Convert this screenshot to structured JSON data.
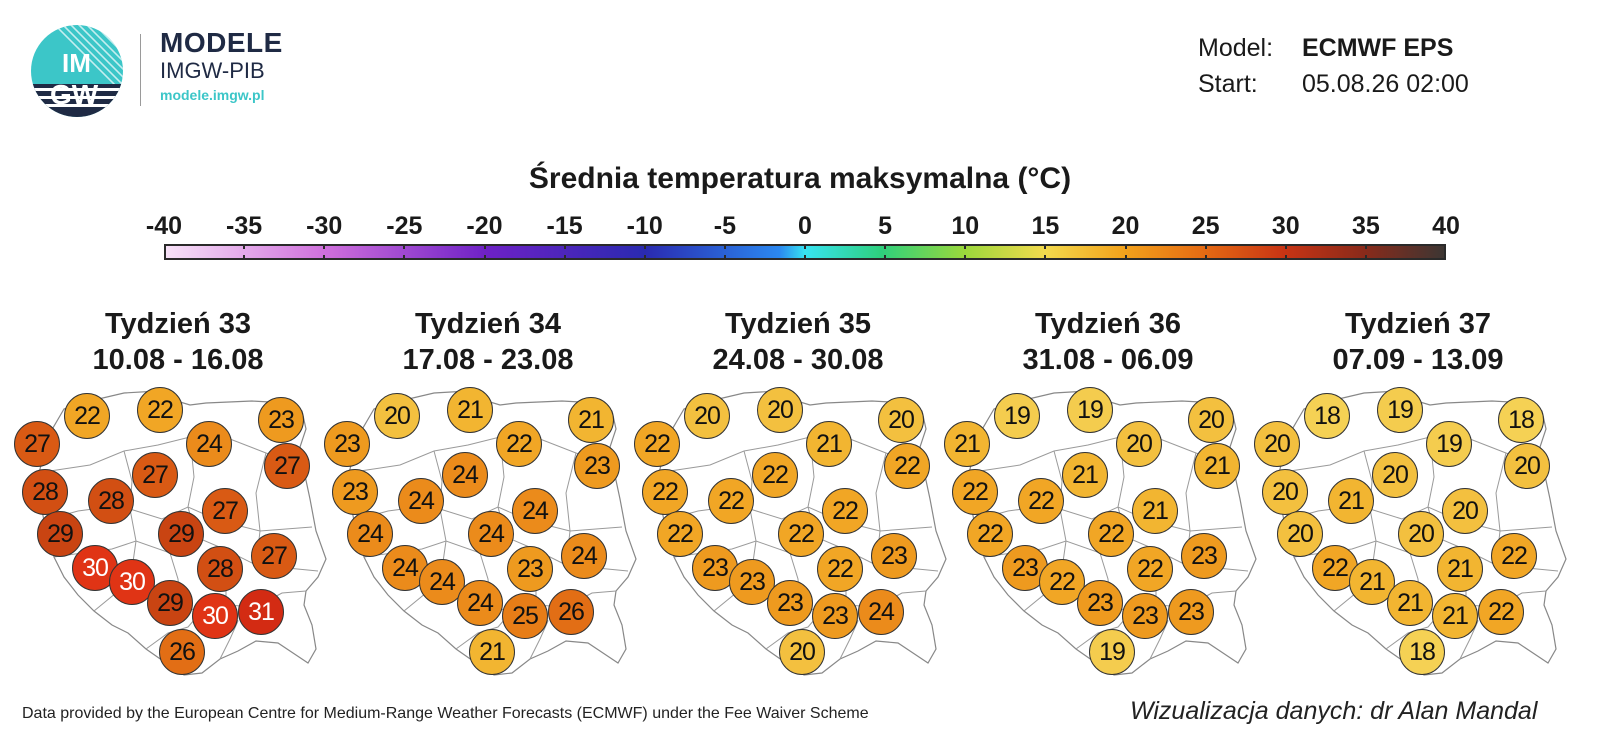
{
  "brand": {
    "logo_text_top": "IM",
    "logo_text_bottom": "GW",
    "name": "MODELE",
    "sub": "IMGW-PIB",
    "url": "modele.imgw.pl"
  },
  "info": {
    "model_label": "Model:",
    "model_value": "ECMWF EPS",
    "start_label": "Start:",
    "start_value": "05.08.26 02:00"
  },
  "title": "Średnia temperatura maksymalna (°C)",
  "colorbar": {
    "ticks": [
      "-40",
      "-35",
      "-30",
      "-25",
      "-20",
      "-15",
      "-10",
      "-5",
      "0",
      "5",
      "10",
      "15",
      "20",
      "25",
      "30",
      "35",
      "40"
    ],
    "min": -40,
    "max": 40
  },
  "weeks": [
    {
      "label": "Tydzień 33",
      "dates": "10.08 - 16.08",
      "values": [
        22,
        22,
        23,
        27,
        24,
        27,
        27,
        28,
        28,
        29,
        29,
        27,
        28,
        27,
        30,
        30,
        29,
        30,
        31,
        26
      ]
    },
    {
      "label": "Tydzień 34",
      "dates": "17.08 - 23.08",
      "values": [
        20,
        21,
        21,
        23,
        22,
        24,
        23,
        23,
        24,
        24,
        24,
        24,
        23,
        24,
        24,
        24,
        24,
        25,
        26,
        21
      ]
    },
    {
      "label": "Tydzień 35",
      "dates": "24.08 - 30.08",
      "values": [
        20,
        20,
        20,
        22,
        21,
        22,
        22,
        22,
        22,
        22,
        22,
        22,
        22,
        23,
        23,
        23,
        23,
        23,
        24,
        20
      ]
    },
    {
      "label": "Tydzień 36",
      "dates": "31.08 - 06.09",
      "values": [
        19,
        19,
        20,
        21,
        20,
        21,
        21,
        22,
        22,
        22,
        22,
        21,
        22,
        23,
        23,
        22,
        23,
        23,
        23,
        19
      ]
    },
    {
      "label": "Tydzień 37",
      "dates": "07.09 - 13.09",
      "values": [
        18,
        19,
        18,
        20,
        19,
        20,
        20,
        20,
        21,
        20,
        20,
        20,
        21,
        22,
        22,
        21,
        21,
        21,
        22,
        18
      ]
    }
  ],
  "footer": {
    "credit": "Data provided by the European Centre for Medium-Range Weather Forecasts (ECMWF) under the Fee Waiver Scheme",
    "author": "Wizualizacja danych: dr Alan Mandal"
  }
}
